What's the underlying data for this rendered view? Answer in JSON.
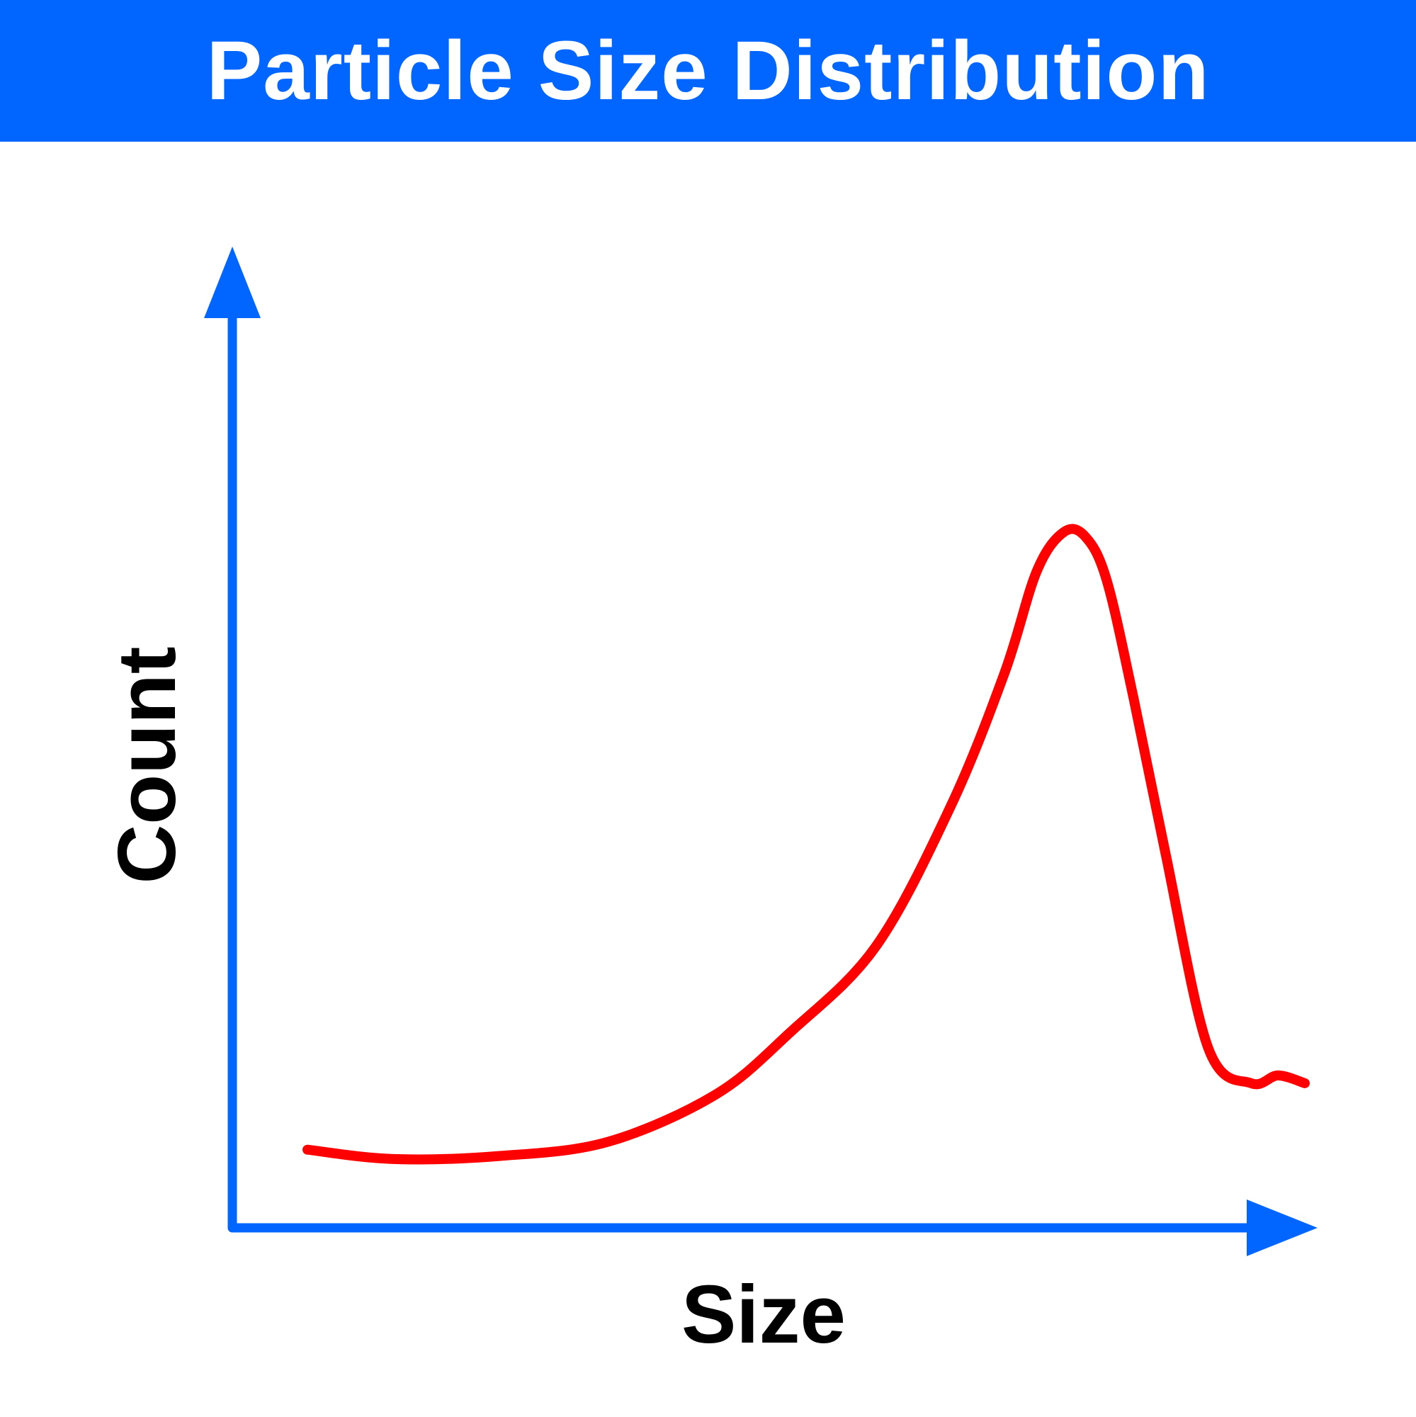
{
  "title": "Particle Size Distribution",
  "colors": {
    "title_bar": "#0066ff",
    "title_text": "#ffffff",
    "axes": "#0066ff",
    "curve": "#ff0000",
    "labels": "#000000"
  },
  "chart_data": {
    "type": "line",
    "xlabel": "Size",
    "ylabel": "Count",
    "x_ticks": [],
    "y_ticks": [],
    "grid": false,
    "xlim": [
      0,
      100
    ],
    "ylim": [
      0,
      100
    ],
    "series": [
      {
        "x": [
          7,
          15,
          25,
          35,
          45,
          52,
          60,
          67,
          72,
          75,
          77.5,
          79.5,
          81.5,
          84,
          87,
          91,
          95,
          97.5,
          100
        ],
        "y": [
          10,
          8.8,
          9.2,
          11,
          17,
          25,
          36,
          54,
          71,
          84,
          89,
          88.5,
          83,
          68,
          48,
          23,
          18.5,
          19.5,
          18.5
        ]
      }
    ]
  }
}
